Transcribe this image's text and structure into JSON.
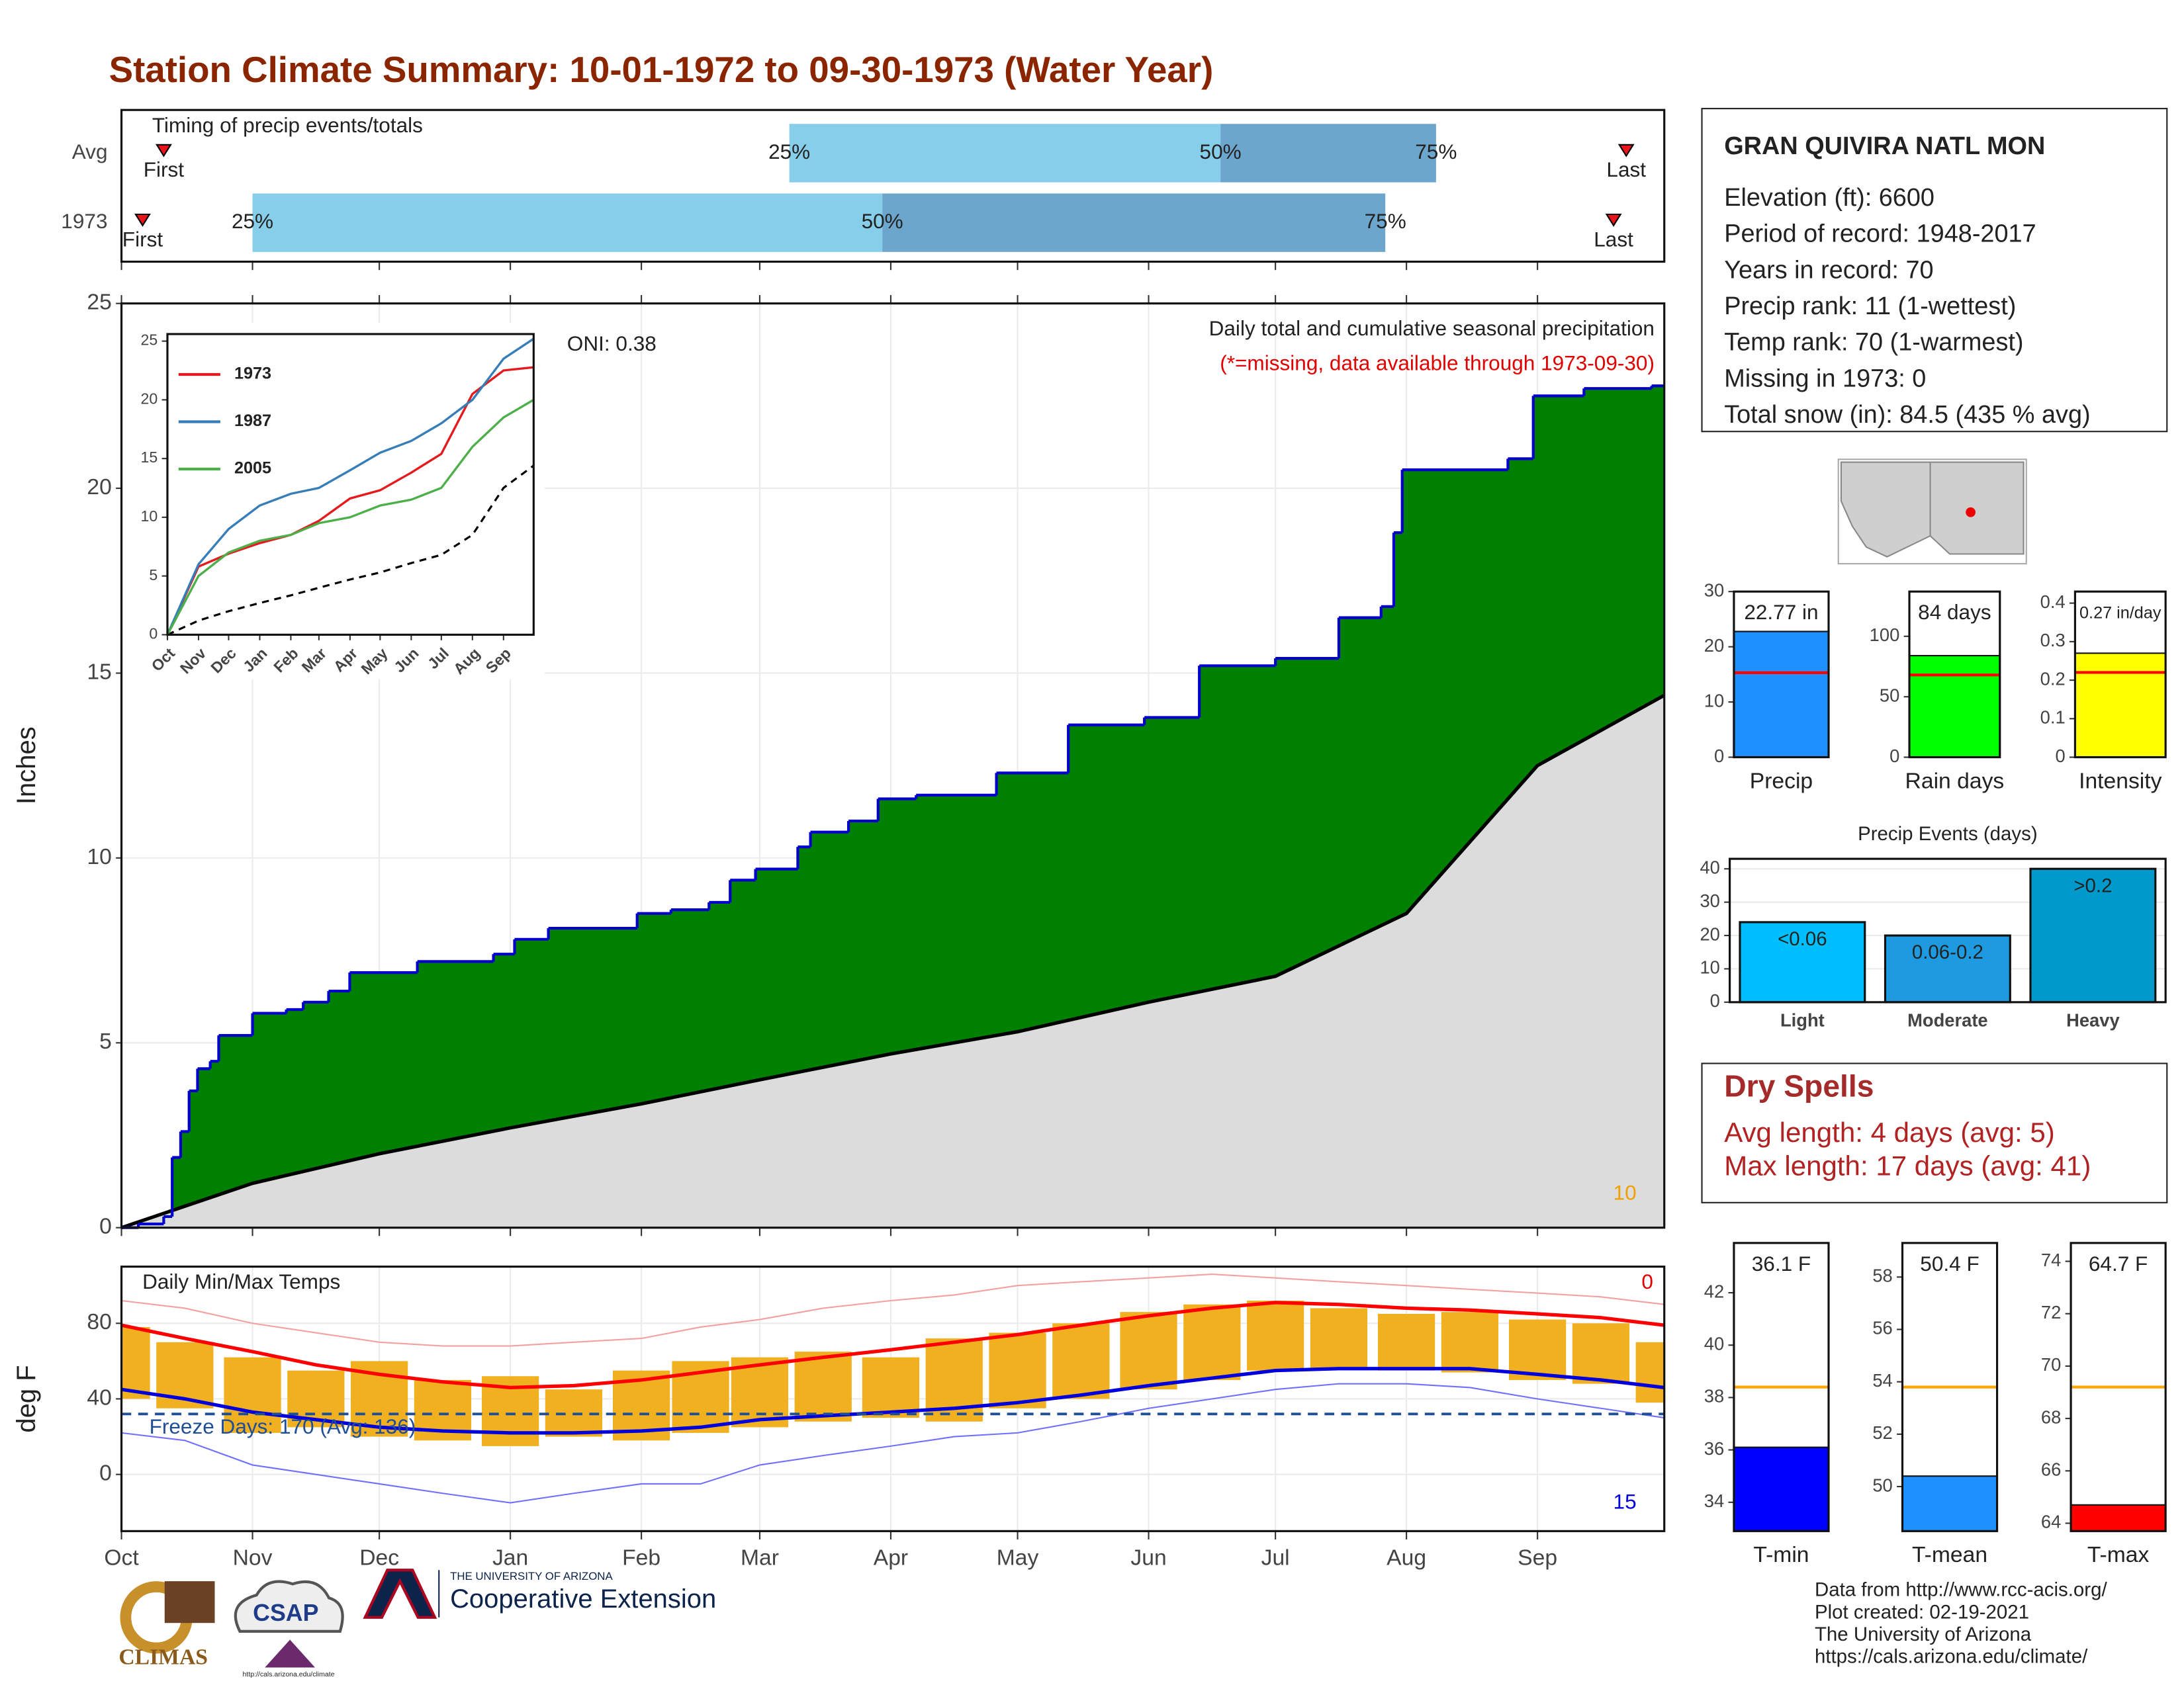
{
  "title": "Station Climate Summary: 10-01-1972 to 09-30-1973 (Water Year)",
  "chart_data": [
    {
      "type": "timing",
      "title": "Timing of precip events/totals",
      "xlim": [
        0,
        365
      ],
      "xticks": [
        0,
        31,
        61,
        92,
        123,
        151,
        182,
        212,
        243,
        273,
        304,
        335
      ],
      "marker_labels": {
        "first": "First",
        "p25": "25%",
        "p50": "50%",
        "p75": "75%",
        "last": "Last"
      },
      "rows": [
        {
          "name": "Avg",
          "first": 10,
          "p25": 158,
          "p50": 260,
          "p75": 311,
          "last": 356
        },
        {
          "name": "1973",
          "first": 5,
          "p25": 31,
          "p50": 180,
          "p75": 299,
          "last": 353
        }
      ],
      "colors": {
        "early": "#87ceeb",
        "late": "#6ca6cd",
        "marker": "#e8141b"
      }
    },
    {
      "type": "step_area",
      "ylabel": "Inches",
      "subtitle": "Daily total and cumulative seasonal precipitation",
      "note": "(*=missing, data available through 1973-09-30)",
      "oni_label": "ONI: 0.38",
      "corner_label": "10",
      "xlim": [
        0,
        365
      ],
      "xticks": [
        0,
        31,
        61,
        92,
        123,
        151,
        182,
        212,
        243,
        273,
        304,
        335
      ],
      "ylim": [
        0,
        25
      ],
      "yticks": [
        0,
        5,
        10,
        15,
        20,
        25
      ],
      "grid": true,
      "series": [
        {
          "color": "#008000",
          "line_color": "#0000cd",
          "x": [
            0,
            4,
            10,
            12,
            14,
            16,
            18,
            21,
            23,
            31,
            39,
            43,
            49,
            54,
            70,
            88,
            93,
            101,
            122,
            130,
            139,
            144,
            150,
            160,
            163,
            172,
            179,
            188,
            207,
            224,
            242,
            255,
            273,
            288,
            298,
            301,
            303,
            328,
            334,
            346,
            362
          ],
          "values": [
            0,
            0.1,
            0.3,
            1.9,
            2.6,
            3.7,
            4.3,
            4.5,
            5.2,
            5.8,
            5.9,
            6.1,
            6.4,
            6.9,
            7.2,
            7.4,
            7.8,
            8.1,
            8.5,
            8.6,
            8.8,
            9.4,
            9.7,
            10.3,
            10.7,
            11.0,
            11.6,
            11.7,
            12.3,
            13.6,
            13.8,
            15.2,
            15.4,
            16.5,
            16.8,
            18.8,
            20.5,
            20.8,
            22.5,
            22.7,
            22.77
          ]
        },
        {
          "color": "#dcdcdc",
          "line_color": "#000000",
          "x": [
            0,
            31,
            61,
            92,
            123,
            151,
            182,
            212,
            243,
            273,
            304,
            335,
            365
          ],
          "values": [
            0,
            1.2,
            2.0,
            2.7,
            3.35,
            4.0,
            4.7,
            5.3,
            6.1,
            6.8,
            8.5,
            12.5,
            14.4
          ]
        }
      ]
    },
    {
      "type": "line",
      "xlim": [
        0,
        365
      ],
      "ylim": [
        0,
        25.6
      ],
      "yticks": [
        0,
        5,
        10,
        15,
        20,
        25
      ],
      "xticks": [
        {
          "value": 0,
          "label": "Oct"
        },
        {
          "value": 31,
          "label": "Nov"
        },
        {
          "value": 61,
          "label": "Dec"
        },
        {
          "value": 92,
          "label": "Jan"
        },
        {
          "value": 123,
          "label": "Feb"
        },
        {
          "value": 151,
          "label": "Mar"
        },
        {
          "value": 182,
          "label": "Apr"
        },
        {
          "value": 212,
          "label": "May"
        },
        {
          "value": 243,
          "label": "Jun"
        },
        {
          "value": 273,
          "label": "Jul"
        },
        {
          "value": 304,
          "label": "Aug"
        },
        {
          "value": 335,
          "label": "Sep"
        }
      ],
      "x": [
        0,
        31,
        61,
        92,
        123,
        151,
        182,
        212,
        243,
        273,
        304,
        335,
        365
      ],
      "series": [
        {
          "name": "1973",
          "color": "#e41a1c",
          "values": [
            0,
            5.8,
            6.9,
            7.8,
            8.5,
            9.7,
            11.6,
            12.3,
            13.8,
            15.4,
            20.5,
            22.5,
            22.77
          ]
        },
        {
          "name": "1987",
          "color": "#377eb8",
          "values": [
            0,
            6,
            9,
            11,
            12,
            12.5,
            14,
            15.5,
            16.5,
            18,
            20,
            23.5,
            25.2
          ]
        },
        {
          "name": "2005",
          "color": "#4daf4a",
          "values": [
            0,
            5,
            7,
            8,
            8.5,
            9.5,
            10,
            11,
            11.5,
            12.5,
            16,
            18.5,
            20
          ]
        }
      ],
      "reference": {
        "color": "#000000",
        "values": [
          0,
          1.2,
          2.0,
          2.7,
          3.35,
          4.0,
          4.7,
          5.3,
          6.1,
          6.8,
          8.5,
          12.5,
          14.4
        ]
      }
    },
    {
      "type": "temps",
      "title": "Daily Min/Max Temps",
      "ylabel": "deg F",
      "freeze_label": "Freeze Days: 170 (Avg: 136)",
      "freeze_threshold": 32,
      "max_count_label": "0",
      "min_count_label": "15",
      "xlim": [
        0,
        365
      ],
      "ylim": [
        -30,
        110
      ],
      "yticks": [
        0,
        40,
        80
      ],
      "grid": true,
      "xticks": [
        {
          "value": 0,
          "label": "Oct"
        },
        {
          "value": 31,
          "label": "Nov"
        },
        {
          "value": 61,
          "label": "Dec"
        },
        {
          "value": 92,
          "label": "Jan"
        },
        {
          "value": 123,
          "label": "Feb"
        },
        {
          "value": 151,
          "label": "Mar"
        },
        {
          "value": 182,
          "label": "Apr"
        },
        {
          "value": 212,
          "label": "May"
        },
        {
          "value": 243,
          "label": "Jun"
        },
        {
          "value": 273,
          "label": "Jul"
        },
        {
          "value": 304,
          "label": "Aug"
        },
        {
          "value": 335,
          "label": "Sep"
        }
      ],
      "x": [
        0,
        15,
        31,
        46,
        61,
        76,
        92,
        107,
        123,
        137,
        151,
        166,
        182,
        197,
        212,
        227,
        243,
        258,
        273,
        288,
        304,
        319,
        335,
        350,
        365
      ],
      "range": {
        "color": "#f0b020",
        "high": [
          78,
          70,
          62,
          55,
          60,
          50,
          52,
          45,
          55,
          60,
          62,
          65,
          62,
          72,
          75,
          80,
          86,
          90,
          92,
          88,
          85,
          86,
          82,
          80,
          70
        ],
        "low": [
          40,
          35,
          22,
          25,
          20,
          18,
          15,
          20,
          18,
          22,
          25,
          28,
          30,
          28,
          35,
          40,
          45,
          50,
          55,
          56,
          55,
          54,
          50,
          48,
          38
        ]
      },
      "series": [
        {
          "color": "#f4a0a0",
          "width": 1,
          "values": [
            92,
            88,
            80,
            75,
            70,
            68,
            68,
            70,
            72,
            78,
            82,
            88,
            92,
            95,
            100,
            102,
            104,
            106,
            104,
            102,
            100,
            98,
            96,
            94,
            90
          ]
        },
        {
          "color": "#7070ff",
          "width": 1,
          "values": [
            22,
            18,
            5,
            0,
            -5,
            -10,
            -15,
            -10,
            -5,
            -5,
            5,
            10,
            15,
            20,
            22,
            28,
            35,
            40,
            45,
            48,
            48,
            46,
            40,
            35,
            30
          ]
        },
        {
          "color": "#ff0000",
          "width": 2.5,
          "values": [
            79,
            72,
            65,
            58,
            53,
            49,
            46,
            47,
            50,
            54,
            58,
            62,
            66,
            70,
            74,
            79,
            84,
            88,
            91,
            90,
            88,
            87,
            85,
            83,
            79
          ]
        },
        {
          "color": "#0000dd",
          "width": 2.5,
          "values": [
            45,
            40,
            33,
            29,
            25,
            23,
            22,
            22,
            23,
            25,
            29,
            31,
            33,
            35,
            38,
            42,
            47,
            51,
            55,
            56,
            56,
            56,
            53,
            50,
            46
          ]
        }
      ],
      "freeze_color": "#1f4e99"
    },
    {
      "type": "gauge",
      "categories": [
        "Precip"
      ],
      "values": [
        22.77
      ],
      "value_labels": [
        "22.77 in"
      ],
      "average": 15.3,
      "average_color": "#ff0000",
      "color": "#1e90ff",
      "ylim": [
        0,
        30
      ],
      "yticks": [
        0,
        10,
        20,
        30
      ]
    },
    {
      "type": "gauge",
      "categories": [
        "Rain days"
      ],
      "values": [
        84
      ],
      "value_labels": [
        "84 days"
      ],
      "average": 68,
      "average_color": "#ff0000",
      "color": "#00ff00",
      "ylim": [
        0,
        137
      ],
      "yticks": [
        0,
        50,
        100
      ]
    },
    {
      "type": "gauge",
      "categories": [
        "Intensity"
      ],
      "values": [
        0.27
      ],
      "value_labels": [
        "0.27 in/day"
      ],
      "average": 0.22,
      "average_color": "#ff0000",
      "color": "#ffff00",
      "ylim": [
        0,
        0.43
      ],
      "yticks": [
        0,
        0.1,
        0.2,
        0.3,
        0.4
      ]
    },
    {
      "type": "bar",
      "title": "Precip Events (days)",
      "categories": [
        "Light",
        "Moderate",
        "Heavy"
      ],
      "values": [
        24,
        20,
        40
      ],
      "value_labels": [
        "<0.06",
        "0.06-0.2",
        ">0.2"
      ],
      "colors": [
        "#00bfff",
        "#1e9be0",
        "#0099cc"
      ],
      "ylim": [
        0,
        43
      ],
      "yticks": [
        0,
        10,
        20,
        30,
        40
      ],
      "grid": true
    },
    {
      "type": "gauge",
      "categories": [
        "T-min"
      ],
      "values": [
        36.1
      ],
      "value_labels": [
        "36.1 F"
      ],
      "average": 38.4,
      "average_color": "#ffa500",
      "color": "#0000ff",
      "ylim": [
        32.9,
        43.9
      ],
      "yticks": [
        34,
        36,
        38,
        40,
        42
      ]
    },
    {
      "type": "gauge",
      "categories": [
        "T-mean"
      ],
      "values": [
        50.4
      ],
      "value_labels": [
        "50.4 F"
      ],
      "average": 53.8,
      "average_color": "#ffa500",
      "color": "#1e90ff",
      "ylim": [
        48.3,
        59.3
      ],
      "yticks": [
        50,
        52,
        54,
        56,
        58
      ]
    },
    {
      "type": "gauge",
      "categories": [
        "T-max"
      ],
      "values": [
        64.7
      ],
      "value_labels": [
        "64.7 F"
      ],
      "average": 69.2,
      "average_color": "#ffa500",
      "color": "#ff0000",
      "ylim": [
        63.7,
        74.7
      ],
      "yticks": [
        64,
        66,
        68,
        70,
        72,
        74
      ]
    }
  ],
  "station": {
    "name": "GRAN QUIVIRA NATL MON",
    "lines": [
      "Elevation (ft): 6600",
      "Period of record: 1948-2017",
      "Years in record: 70",
      "Precip rank: 11 (1-wettest)",
      "Temp rank: 70 (1-warmest)",
      "Missing in 1973: 0",
      "Total snow (in): 84.5 (435 % avg)"
    ]
  },
  "dry_spells": {
    "title": "Dry Spells",
    "lines": [
      "Avg length: 4 days (avg: 5)",
      "Max length: 17 days (avg: 41)"
    ]
  },
  "footer": {
    "lines": [
      "Data from http://www.rcc-acis.org/",
      "Plot created: 02-19-2021",
      "The University of Arizona",
      "https://cals.arizona.edu/climate/"
    ]
  },
  "logos": {
    "climas": "CLIMAS",
    "csap": "CSAP",
    "csap_url": "http://cals.arizona.edu/climate",
    "university": "THE UNIVERSITY OF ARIZONA",
    "unit": "Cooperative Extension"
  }
}
